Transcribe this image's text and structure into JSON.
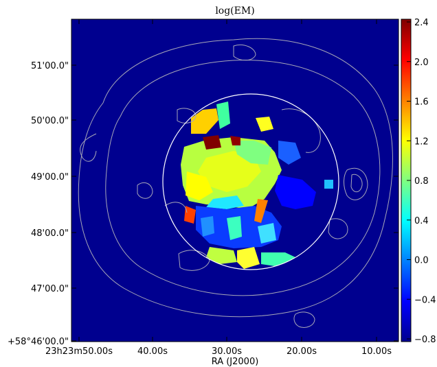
{
  "chart_data": {
    "type": "heatmap",
    "title": "log(EM)",
    "xlabel": "RA (J2000)",
    "ylabel": "",
    "x_ticks": [
      "23h23m50.00s",
      "40.00s",
      "30.00s",
      "20.00s",
      "10.00s"
    ],
    "y_ticks": [
      "+58°46'00.0\"",
      "47'00.0\"",
      "48'00.0\"",
      "49'00.0\"",
      "50'00.0\"",
      "51'00.0\""
    ],
    "colorbar": {
      "colormap": "jet",
      "min": -0.8,
      "max": 2.4,
      "ticks": [
        "2.4",
        "2.0",
        "1.6",
        "1.2",
        "0.8",
        "0.4",
        "0.0",
        "−0.4",
        "−0.8"
      ]
    },
    "background_color": "#00008f",
    "overlays": [
      "white circle region",
      "grey contour lines"
    ],
    "grid": false
  }
}
